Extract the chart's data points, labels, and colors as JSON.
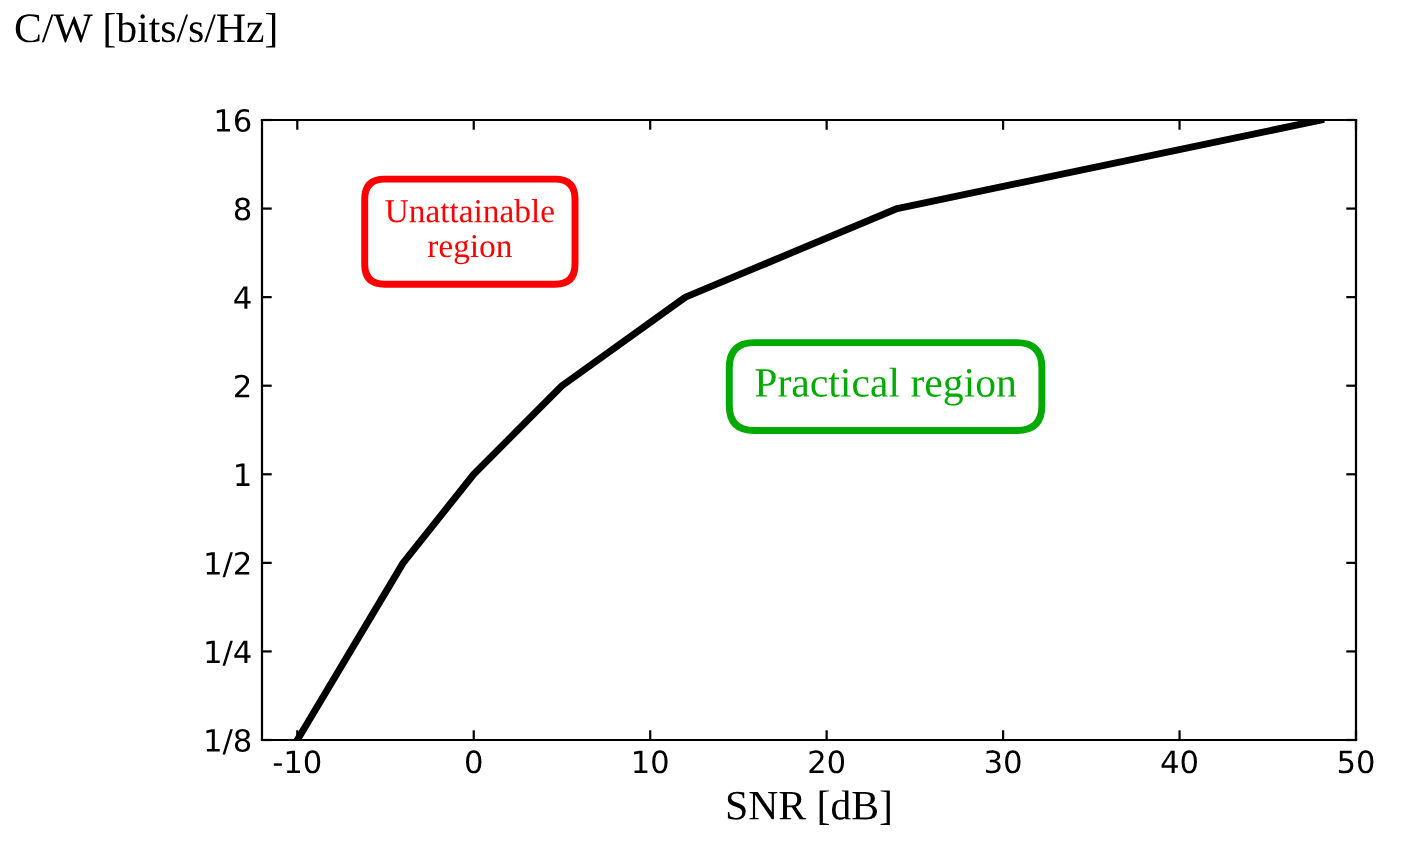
{
  "chart_data": {
    "type": "line",
    "ylabel": "C/W [bits/s/Hz]",
    "xlabel": "SNR [dB]",
    "x": [
      -10,
      -4,
      0,
      5,
      12,
      24,
      48
    ],
    "series": [
      {
        "color": "#000000",
        "values": [
          0.125,
          0.5,
          1,
          2,
          4,
          8,
          16
        ]
      }
    ],
    "log": "y",
    "xlim": [
      -12,
      50
    ],
    "ylim": [
      0.125,
      16
    ],
    "xticks": [
      -10,
      0,
      10,
      20,
      30,
      40,
      50
    ],
    "yticks": [
      {
        "value": 0.125,
        "label": "1/8"
      },
      {
        "value": 0.25,
        "label": "1/4"
      },
      {
        "value": 0.5,
        "label": "1/2"
      },
      1,
      2,
      4,
      8,
      16
    ],
    "grid": false,
    "marker": "none",
    "line_style": "solid",
    "annotations": [
      "Unattainable\nregion",
      "Practical region"
    ]
  }
}
